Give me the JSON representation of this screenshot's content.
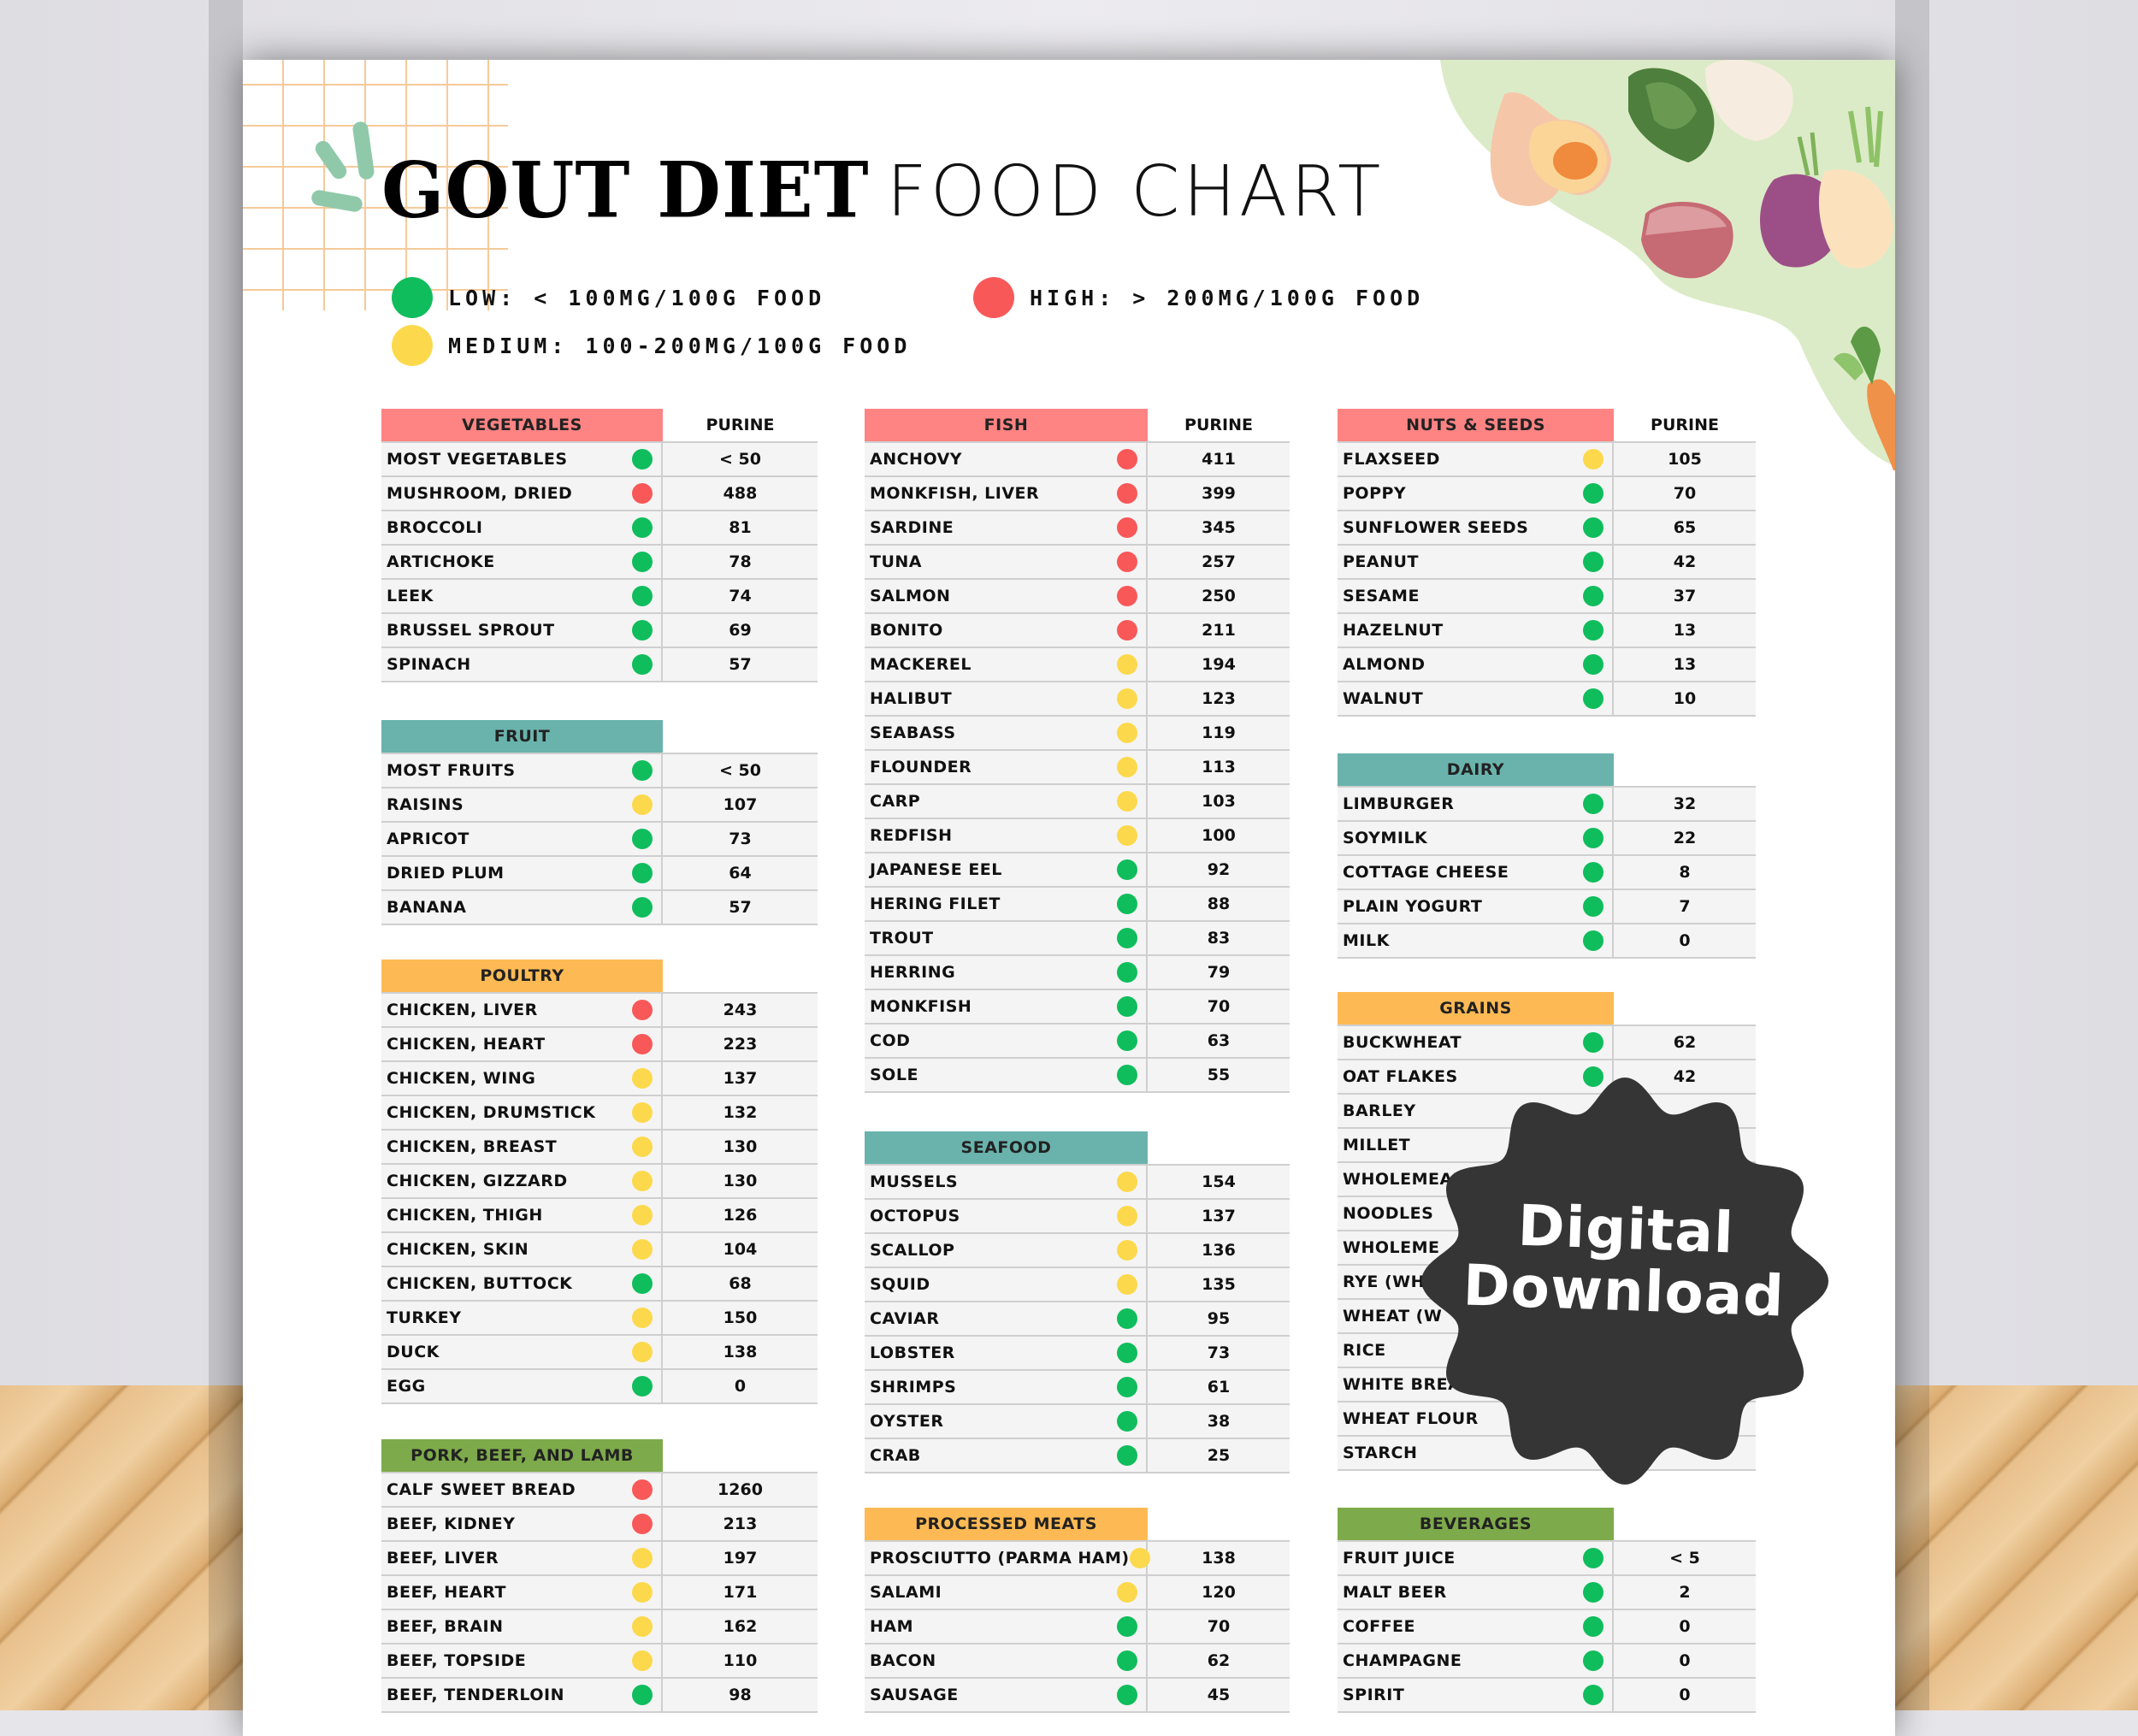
{
  "title": {
    "bold": "GOUT DIET",
    "light": "FOOD CHART"
  },
  "colors": {
    "low": "#0fbd5c",
    "medium": "#fcd94c",
    "high": "#f95859",
    "header_red": "#fe8383",
    "header_teal": "#6ab3ad",
    "header_orange": "#fdba54",
    "header_green": "#7daa4a",
    "badge": "#353535"
  },
  "legend": {
    "low": "LOW: < 100MG/100G FOOD",
    "high": "HIGH: > 200MG/100G FOOD",
    "medium": "MEDIUM: 100-200MG/100G FOOD"
  },
  "purine_header": "PURINE",
  "badge": {
    "line1": "Digital",
    "line2": "Download"
  },
  "tables": {
    "vegetables": {
      "title": "VEGETABLES",
      "rows": [
        {
          "name": "MOST VEGETABLES",
          "level": "low",
          "value": "< 50"
        },
        {
          "name": "MUSHROOM, DRIED",
          "level": "high",
          "value": "488"
        },
        {
          "name": "BROCCOLI",
          "level": "low",
          "value": "81"
        },
        {
          "name": "ARTICHOKE",
          "level": "low",
          "value": "78"
        },
        {
          "name": "LEEK",
          "level": "low",
          "value": "74"
        },
        {
          "name": "BRUSSEL SPROUT",
          "level": "low",
          "value": "69"
        },
        {
          "name": "SPINACH",
          "level": "low",
          "value": "57"
        }
      ]
    },
    "fruit": {
      "title": "FRUIT",
      "rows": [
        {
          "name": "MOST FRUITS",
          "level": "low",
          "value": "< 50"
        },
        {
          "name": "RAISINS",
          "level": "medium",
          "value": "107"
        },
        {
          "name": "APRICOT",
          "level": "low",
          "value": "73"
        },
        {
          "name": "DRIED PLUM",
          "level": "low",
          "value": "64"
        },
        {
          "name": "BANANA",
          "level": "low",
          "value": "57"
        }
      ]
    },
    "poultry": {
      "title": "POULTRY",
      "rows": [
        {
          "name": "CHICKEN, LIVER",
          "level": "high",
          "value": "243"
        },
        {
          "name": "CHICKEN, HEART",
          "level": "high",
          "value": "223"
        },
        {
          "name": "CHICKEN, WING",
          "level": "medium",
          "value": "137"
        },
        {
          "name": "CHICKEN, DRUMSTICK",
          "level": "medium",
          "value": "132"
        },
        {
          "name": "CHICKEN, BREAST",
          "level": "medium",
          "value": "130"
        },
        {
          "name": "CHICKEN, GIZZARD",
          "level": "medium",
          "value": "130"
        },
        {
          "name": "CHICKEN, THIGH",
          "level": "medium",
          "value": "126"
        },
        {
          "name": "CHICKEN, SKIN",
          "level": "medium",
          "value": "104"
        },
        {
          "name": "CHICKEN, BUTTOCK",
          "level": "low",
          "value": "68"
        },
        {
          "name": "TURKEY",
          "level": "medium",
          "value": "150"
        },
        {
          "name": "DUCK",
          "level": "medium",
          "value": "138"
        },
        {
          "name": "EGG",
          "level": "low",
          "value": "0"
        }
      ]
    },
    "pork_beef_lamb": {
      "title": "PORK, BEEF, AND LAMB",
      "rows": [
        {
          "name": "CALF SWEET BREAD",
          "level": "high",
          "value": "1260"
        },
        {
          "name": "BEEF, KIDNEY",
          "level": "high",
          "value": "213"
        },
        {
          "name": "BEEF, LIVER",
          "level": "medium",
          "value": "197"
        },
        {
          "name": "BEEF, HEART",
          "level": "medium",
          "value": "171"
        },
        {
          "name": "BEEF, BRAIN",
          "level": "medium",
          "value": "162"
        },
        {
          "name": "BEEF, TOPSIDE",
          "level": "medium",
          "value": "110"
        },
        {
          "name": "BEEF, TENDERLOIN",
          "level": "low",
          "value": "98"
        }
      ]
    },
    "fish": {
      "title": "FISH",
      "rows": [
        {
          "name": "ANCHOVY",
          "level": "high",
          "value": "411"
        },
        {
          "name": "MONKFISH, LIVER",
          "level": "high",
          "value": "399"
        },
        {
          "name": "SARDINE",
          "level": "high",
          "value": "345"
        },
        {
          "name": "TUNA",
          "level": "high",
          "value": "257"
        },
        {
          "name": "SALMON",
          "level": "high",
          "value": "250"
        },
        {
          "name": "BONITO",
          "level": "high",
          "value": "211"
        },
        {
          "name": "MACKEREL",
          "level": "medium",
          "value": "194"
        },
        {
          "name": "HALIBUT",
          "level": "medium",
          "value": "123"
        },
        {
          "name": "SEABASS",
          "level": "medium",
          "value": "119"
        },
        {
          "name": "FLOUNDER",
          "level": "medium",
          "value": "113"
        },
        {
          "name": "CARP",
          "level": "medium",
          "value": "103"
        },
        {
          "name": "REDFISH",
          "level": "medium",
          "value": "100"
        },
        {
          "name": "JAPANESE EEL",
          "level": "low",
          "value": "92"
        },
        {
          "name": "HERING FILET",
          "level": "low",
          "value": "88"
        },
        {
          "name": "TROUT",
          "level": "low",
          "value": "83"
        },
        {
          "name": "HERRING",
          "level": "low",
          "value": "79"
        },
        {
          "name": "MONKFISH",
          "level": "low",
          "value": "70"
        },
        {
          "name": "COD",
          "level": "low",
          "value": "63"
        },
        {
          "name": "SOLE",
          "level": "low",
          "value": "55"
        }
      ]
    },
    "seafood": {
      "title": "SEAFOOD",
      "rows": [
        {
          "name": "MUSSELS",
          "level": "medium",
          "value": "154"
        },
        {
          "name": "OCTOPUS",
          "level": "medium",
          "value": "137"
        },
        {
          "name": "SCALLOP",
          "level": "medium",
          "value": "136"
        },
        {
          "name": "SQUID",
          "level": "medium",
          "value": "135"
        },
        {
          "name": "CAVIAR",
          "level": "low",
          "value": "95"
        },
        {
          "name": "LOBSTER",
          "level": "low",
          "value": "73"
        },
        {
          "name": "SHRIMPS",
          "level": "low",
          "value": "61"
        },
        {
          "name": "OYSTER",
          "level": "low",
          "value": "38"
        },
        {
          "name": "CRAB",
          "level": "low",
          "value": "25"
        }
      ]
    },
    "processed_meats": {
      "title": "PROCESSED MEATS",
      "rows": [
        {
          "name": "PROSCIUTTO (PARMA HAM)",
          "level": "medium",
          "value": "138"
        },
        {
          "name": "SALAMI",
          "level": "medium",
          "value": "120"
        },
        {
          "name": "HAM",
          "level": "low",
          "value": "70"
        },
        {
          "name": "BACON",
          "level": "low",
          "value": "62"
        },
        {
          "name": "SAUSAGE",
          "level": "low",
          "value": "45"
        }
      ]
    },
    "nuts_seeds": {
      "title": "NUTS & SEEDS",
      "rows": [
        {
          "name": "FLAXSEED",
          "level": "medium",
          "value": "105"
        },
        {
          "name": "POPPY",
          "level": "low",
          "value": "70"
        },
        {
          "name": "SUNFLOWER SEEDS",
          "level": "low",
          "value": "65"
        },
        {
          "name": "PEANUT",
          "level": "low",
          "value": "42"
        },
        {
          "name": "SESAME",
          "level": "low",
          "value": "37"
        },
        {
          "name": "HAZELNUT",
          "level": "low",
          "value": "13"
        },
        {
          "name": "ALMOND",
          "level": "low",
          "value": "13"
        },
        {
          "name": "WALNUT",
          "level": "low",
          "value": "10"
        }
      ]
    },
    "dairy": {
      "title": "DAIRY",
      "rows": [
        {
          "name": "LIMBURGER",
          "level": "low",
          "value": "32"
        },
        {
          "name": "SOYMILK",
          "level": "low",
          "value": "22"
        },
        {
          "name": "COTTAGE CHEESE",
          "level": "low",
          "value": "8"
        },
        {
          "name": "PLAIN YOGURT",
          "level": "low",
          "value": "7"
        },
        {
          "name": "MILK",
          "level": "low",
          "value": "0"
        }
      ]
    },
    "grains": {
      "title": "GRAINS",
      "rows": [
        {
          "name": "BUCKWHEAT",
          "level": "low",
          "value": "62"
        },
        {
          "name": "OAT FLAKES",
          "level": "low",
          "value": "42"
        },
        {
          "name": "BARLEY",
          "level": "",
          "value": ""
        },
        {
          "name": "MILLET",
          "level": "",
          "value": ""
        },
        {
          "name": "WHOLEMEAL",
          "level": "",
          "value": ""
        },
        {
          "name": "NOODLES",
          "level": "",
          "value": ""
        },
        {
          "name": "WHOLEME",
          "level": "",
          "value": ""
        },
        {
          "name": "RYE (WHOL",
          "level": "",
          "value": ""
        },
        {
          "name": "WHEAT (W",
          "level": "",
          "value": ""
        },
        {
          "name": "RICE",
          "level": "",
          "value": ""
        },
        {
          "name": "WHITE BREAD",
          "level": "",
          "value": ""
        },
        {
          "name": "WHEAT FLOUR",
          "level": "",
          "value": ""
        },
        {
          "name": "STARCH",
          "level": "",
          "value": ""
        }
      ]
    },
    "beverages": {
      "title": "BEVERAGES",
      "rows": [
        {
          "name": "FRUIT JUICE",
          "level": "low",
          "value": "< 5"
        },
        {
          "name": "MALT BEER",
          "level": "low",
          "value": "2"
        },
        {
          "name": "COFFEE",
          "level": "low",
          "value": "0"
        },
        {
          "name": "CHAMPAGNE",
          "level": "low",
          "value": "0"
        },
        {
          "name": "SPIRIT",
          "level": "low",
          "value": "0"
        }
      ]
    }
  }
}
